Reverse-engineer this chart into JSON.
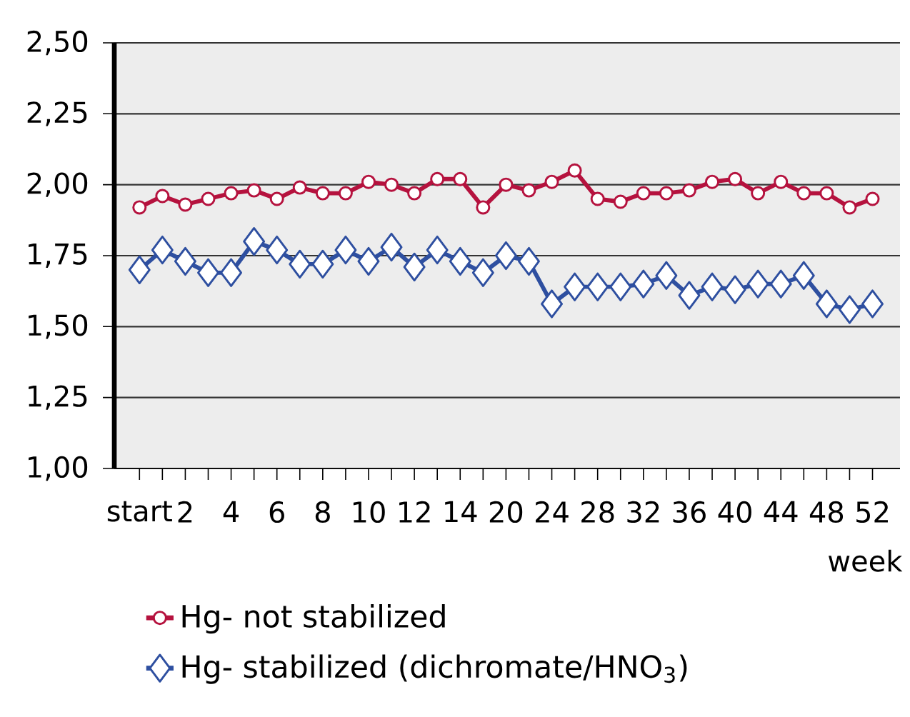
{
  "chart_data": {
    "type": "line",
    "xlabel": "week",
    "categories": [
      "start",
      null,
      "2",
      null,
      "4",
      null,
      "6",
      null,
      "8",
      null,
      "10",
      null,
      "12",
      null,
      "14",
      null,
      "20",
      null,
      "24",
      null,
      "28",
      null,
      "32",
      null,
      "36",
      null,
      "40",
      null,
      "44",
      null,
      "48",
      null,
      "52"
    ],
    "series": [
      {
        "name": "Hg- not stabilized",
        "color": "#b5123e",
        "marker": "circle",
        "values": [
          1.92,
          1.96,
          1.93,
          1.95,
          1.97,
          1.98,
          1.95,
          1.99,
          1.97,
          1.97,
          2.01,
          2.0,
          1.97,
          2.02,
          2.02,
          1.92,
          2.0,
          1.98,
          2.01,
          2.05,
          1.95,
          1.94,
          1.97,
          1.97,
          1.98,
          2.01,
          2.02,
          1.97,
          2.01,
          1.97,
          1.97,
          1.92,
          1.95
        ]
      },
      {
        "name": "Hg- stabilized (dichromate/HNO$_{3}$)",
        "color": "#2e4fa0",
        "marker": "diamond",
        "values": [
          1.7,
          1.77,
          1.73,
          1.69,
          1.69,
          1.8,
          1.77,
          1.72,
          1.72,
          1.77,
          1.73,
          1.78,
          1.71,
          1.77,
          1.73,
          1.69,
          1.75,
          1.73,
          1.58,
          1.64,
          1.64,
          1.64,
          1.65,
          1.68,
          1.61,
          1.64,
          1.63,
          1.65,
          1.65,
          1.68,
          1.58,
          1.56,
          1.58
        ]
      }
    ],
    "ylim": [
      1.0,
      2.5
    ],
    "yticks": [
      {
        "value": 1.0,
        "label": "1,00"
      },
      {
        "value": 1.25,
        "label": "1,25"
      },
      {
        "value": 1.5,
        "label": "1,50"
      },
      {
        "value": 1.75,
        "label": "1,75"
      },
      {
        "value": 2.0,
        "label": "2,00"
      },
      {
        "value": 2.25,
        "label": "2,25"
      },
      {
        "value": 2.5,
        "label": "2,50"
      }
    ],
    "grid": "y",
    "legend": "bottom",
    "line_style": "solid"
  }
}
